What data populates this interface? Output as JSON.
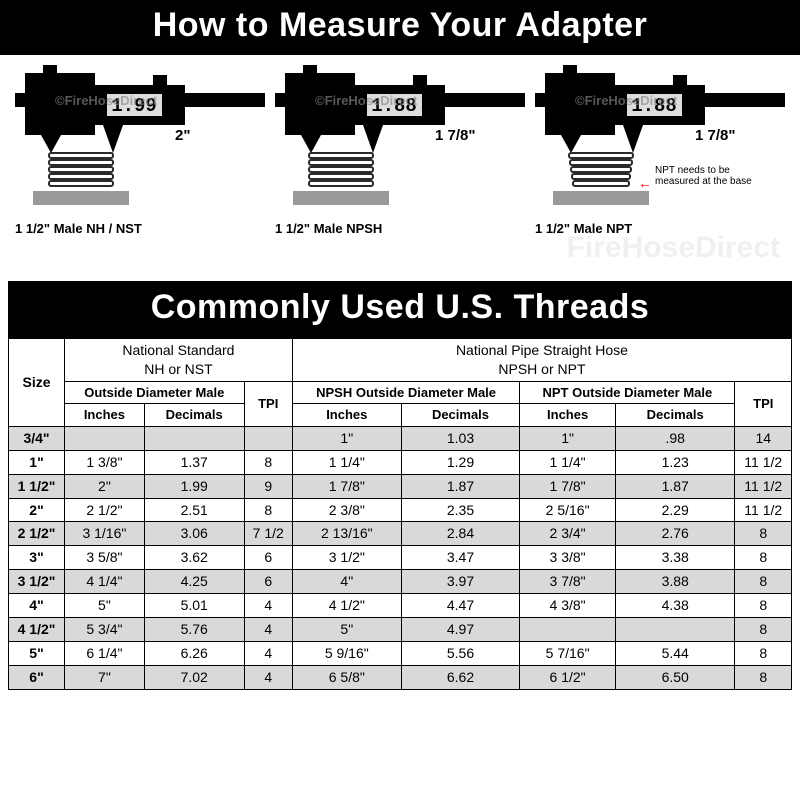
{
  "title1": "How to Measure Your Adapter",
  "title2": "Commonly Used U.S. Threads",
  "watermark_text": "FireHoseDirect",
  "colors": {
    "bar_bg": "#000000",
    "bar_fg": "#ffffff",
    "shade_bg": "#d9d9d9",
    "border": "#000000",
    "lcd_bg": "#dddddd",
    "note_arrow": "#ff0000"
  },
  "diagrams": [
    {
      "caliper_readout": "1.99",
      "dim_label": "2\"",
      "caption": "1 1/2\" Male NH / NST",
      "tapered": false,
      "note": null
    },
    {
      "caliper_readout": "1.88",
      "dim_label": "1 7/8\"",
      "caption": "1 1/2\" Male NPSH",
      "tapered": false,
      "note": null
    },
    {
      "caliper_readout": "1.88",
      "dim_label": "1 7/8\"",
      "caption": "1 1/2\" Male NPT",
      "tapered": true,
      "note": "NPT needs to be measured at the base"
    }
  ],
  "table": {
    "group1_line1": "National Standard",
    "group1_line2": "NH or NST",
    "group2_line1": "National Pipe Straight Hose",
    "group2_line2": "NPSH or NPT",
    "sub_size": "Size",
    "sub_od_male": "Outside Diameter Male",
    "sub_tpi": "TPI",
    "sub_npsh_od": "NPSH Outside Diameter Male",
    "sub_npt_od": "NPT Outside Diameter Male",
    "sub_inches": "Inches",
    "sub_decimals": "Decimals",
    "rows": [
      {
        "size": "3/4\"",
        "nh_in": "",
        "nh_dec": "",
        "nh_tpi": "",
        "npsh_in": "1\"",
        "npsh_dec": "1.03",
        "npt_in": "1\"",
        "npt_dec": ".98",
        "np_tpi": "14"
      },
      {
        "size": "1\"",
        "nh_in": "1 3/8\"",
        "nh_dec": "1.37",
        "nh_tpi": "8",
        "npsh_in": "1 1/4\"",
        "npsh_dec": "1.29",
        "npt_in": "1 1/4\"",
        "npt_dec": "1.23",
        "np_tpi": "11 1/2"
      },
      {
        "size": "1 1/2\"",
        "nh_in": "2\"",
        "nh_dec": "1.99",
        "nh_tpi": "9",
        "npsh_in": "1 7/8\"",
        "npsh_dec": "1.87",
        "npt_in": "1 7/8\"",
        "npt_dec": "1.87",
        "np_tpi": "11 1/2"
      },
      {
        "size": "2\"",
        "nh_in": "2 1/2\"",
        "nh_dec": "2.51",
        "nh_tpi": "8",
        "npsh_in": "2 3/8\"",
        "npsh_dec": "2.35",
        "npt_in": "2 5/16\"",
        "npt_dec": "2.29",
        "np_tpi": "11 1/2"
      },
      {
        "size": "2 1/2\"",
        "nh_in": "3 1/16\"",
        "nh_dec": "3.06",
        "nh_tpi": "7 1/2",
        "npsh_in": "2 13/16\"",
        "npsh_dec": "2.84",
        "npt_in": "2 3/4\"",
        "npt_dec": "2.76",
        "np_tpi": "8"
      },
      {
        "size": "3\"",
        "nh_in": "3 5/8\"",
        "nh_dec": "3.62",
        "nh_tpi": "6",
        "npsh_in": "3 1/2\"",
        "npsh_dec": "3.47",
        "npt_in": "3 3/8\"",
        "npt_dec": "3.38",
        "np_tpi": "8"
      },
      {
        "size": "3 1/2\"",
        "nh_in": "4 1/4\"",
        "nh_dec": "4.25",
        "nh_tpi": "6",
        "npsh_in": "4\"",
        "npsh_dec": "3.97",
        "npt_in": "3 7/8\"",
        "npt_dec": "3.88",
        "np_tpi": "8"
      },
      {
        "size": "4\"",
        "nh_in": "5\"",
        "nh_dec": "5.01",
        "nh_tpi": "4",
        "npsh_in": "4 1/2\"",
        "npsh_dec": "4.47",
        "npt_in": "4 3/8\"",
        "npt_dec": "4.38",
        "np_tpi": "8"
      },
      {
        "size": "4 1/2\"",
        "nh_in": "5 3/4\"",
        "nh_dec": "5.76",
        "nh_tpi": "4",
        "npsh_in": "5\"",
        "npsh_dec": "4.97",
        "npt_in": "",
        "npt_dec": "",
        "np_tpi": "8"
      },
      {
        "size": "5\"",
        "nh_in": "6 1/4\"",
        "nh_dec": "6.26",
        "nh_tpi": "4",
        "npsh_in": "5 9/16\"",
        "npsh_dec": "5.56",
        "npt_in": "5 7/16\"",
        "npt_dec": "5.44",
        "np_tpi": "8"
      },
      {
        "size": "6\"",
        "nh_in": "7\"",
        "nh_dec": "7.02",
        "nh_tpi": "4",
        "npsh_in": "6 5/8\"",
        "npsh_dec": "6.62",
        "npt_in": "6 1/2\"",
        "npt_dec": "6.50",
        "np_tpi": "8"
      }
    ]
  }
}
